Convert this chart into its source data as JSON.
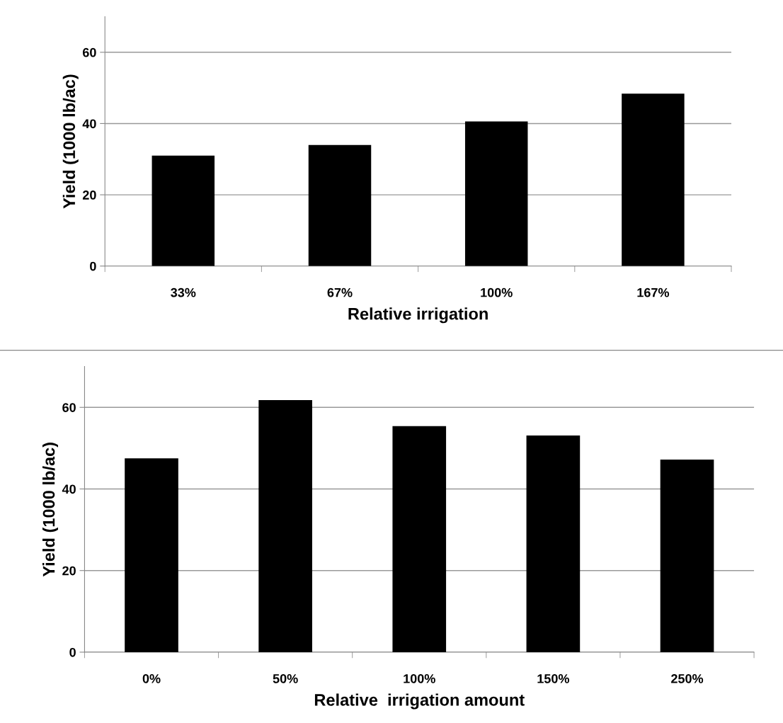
{
  "chart_data": [
    {
      "type": "bar",
      "xlabel": "Relative irrigation",
      "ylabel": "Yield (1000 lb/ac)",
      "categories": [
        "33%",
        "67%",
        "100%",
        "167%"
      ],
      "values": [
        31,
        34,
        40.6,
        48.4
      ],
      "color": "#000000",
      "ylim": [
        0,
        70
      ],
      "yticks": [
        0,
        20,
        40,
        60
      ],
      "grid": "y"
    },
    {
      "type": "bar",
      "xlabel": "Relative  irrigation amount",
      "ylabel": "Yield (1000 lb/ac)",
      "categories": [
        "0%",
        "50%",
        "100%",
        "150%",
        "250%"
      ],
      "values": [
        47.5,
        61.8,
        55.4,
        53.1,
        47.2
      ],
      "color": "#000000",
      "ylim": [
        0,
        70
      ],
      "yticks": [
        0,
        20,
        40,
        60
      ],
      "grid": "y"
    }
  ]
}
